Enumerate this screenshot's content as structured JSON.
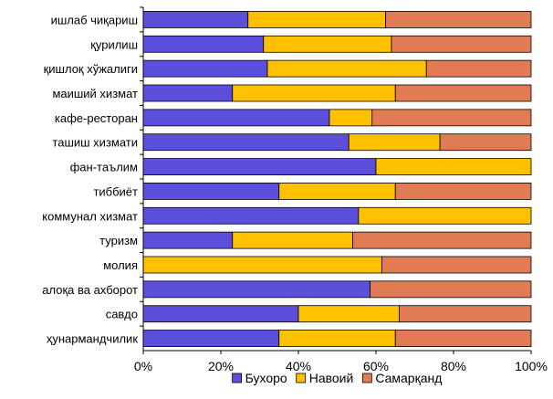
{
  "chart_data": {
    "type": "bar",
    "orientation": "horizontal",
    "stacked": "percent",
    "categories": [
      "ишлаб чиқариш",
      "қурилиш",
      "қишлоқ хўжалиги",
      "маиший хизмат",
      "кафе-ресторан",
      "ташиш хизмати",
      "фан-таълим",
      "тиббиёт",
      "коммунал хизмат",
      "туризм",
      "молия",
      "алоқа ва ахборот",
      "савдо",
      "ҳунармандчилик"
    ],
    "series": [
      {
        "name": "Бухоро",
        "color": "#5b4fdb",
        "values": [
          27,
          31,
          32,
          23,
          48,
          53,
          60,
          35,
          55.5,
          23,
          0,
          58.5,
          40,
          35
        ]
      },
      {
        "name": "Навоий",
        "color": "#ffc000",
        "values": [
          35.5,
          33,
          41,
          42,
          11,
          23.5,
          40,
          30,
          44.5,
          31,
          61.5,
          0,
          26,
          30
        ]
      },
      {
        "name": "Самарқанд",
        "color": "#e07b54",
        "values": [
          37.5,
          36,
          27,
          35,
          41,
          23.5,
          0,
          35,
          0,
          46,
          38.5,
          41.5,
          34,
          35
        ]
      }
    ],
    "xlim": [
      0,
      100
    ],
    "xticks": [
      "0%",
      "20%",
      "40%",
      "60%",
      "80%",
      "100%"
    ],
    "legend_position": "bottom",
    "grid": false
  }
}
